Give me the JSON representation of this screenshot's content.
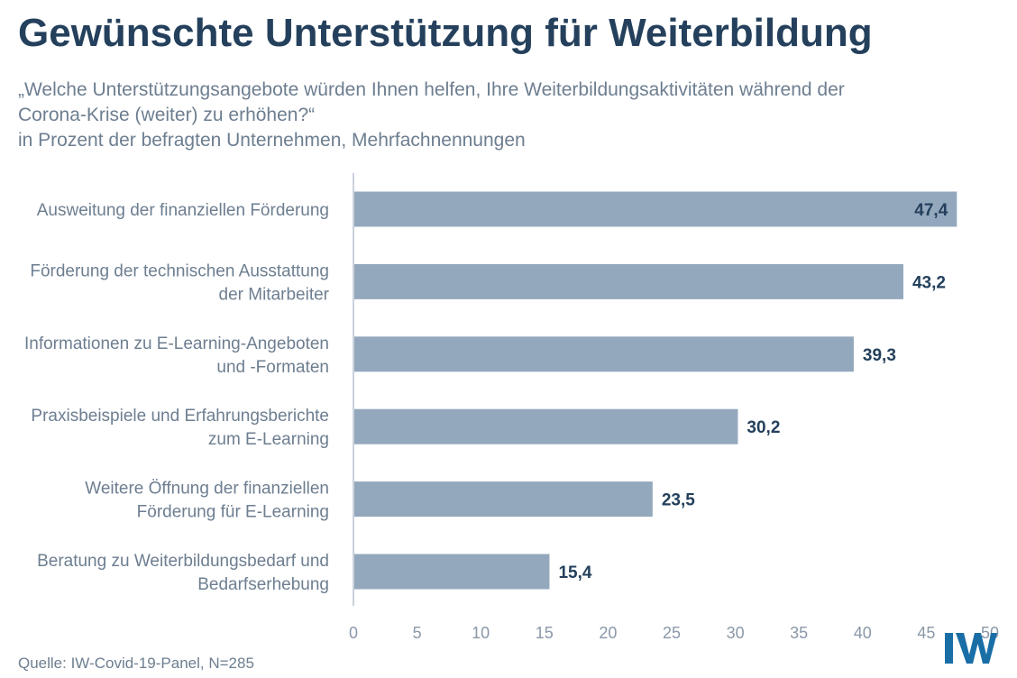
{
  "header": {
    "title": "Gewünschte Unterstützung für Weiterbildung",
    "subtitle_lines": [
      "„Welche Unterstützungsangebote würden Ihnen helfen, Ihre Weiterbildungsaktivitäten während der",
      "Corona-Krise (weiter) zu erhöhen?“",
      "in Prozent der befragten Unternehmen, Mehrfachnennungen"
    ]
  },
  "footer": {
    "source": "Quelle: IW-Covid-19-Panel, N=285",
    "logo_text": "IW"
  },
  "colors": {
    "bar": "#94a8bd",
    "title": "#24405c",
    "text": "#6d7e90",
    "axis": "#c9d2dc",
    "logo": "#1a6ea6"
  },
  "chart_data": {
    "type": "bar",
    "orientation": "horizontal",
    "categories": [
      [
        "Ausweitung der finanziellen Förderung"
      ],
      [
        "Förderung der technischen Ausstattung",
        "der Mitarbeiter"
      ],
      [
        "Informationen zu E-Learning-Angeboten",
        "und -Formaten"
      ],
      [
        "Praxisbeispiele und Erfahrungsberichte",
        "zum E-Learning"
      ],
      [
        "Weitere Öffnung der finanziellen",
        "Förderung für E-Learning"
      ],
      [
        "Beratung zu Weiterbildungsbedarf und",
        "Bedarfserhebung"
      ]
    ],
    "values": [
      47.4,
      43.2,
      39.3,
      30.2,
      23.5,
      15.4
    ],
    "value_labels": [
      "47,4",
      "43,2",
      "39,3",
      "30,2",
      "23,5",
      "15,4"
    ],
    "xlim": [
      0,
      50
    ],
    "xticks": [
      0,
      5,
      10,
      15,
      20,
      25,
      30,
      35,
      40,
      45,
      50
    ],
    "grid": false
  }
}
